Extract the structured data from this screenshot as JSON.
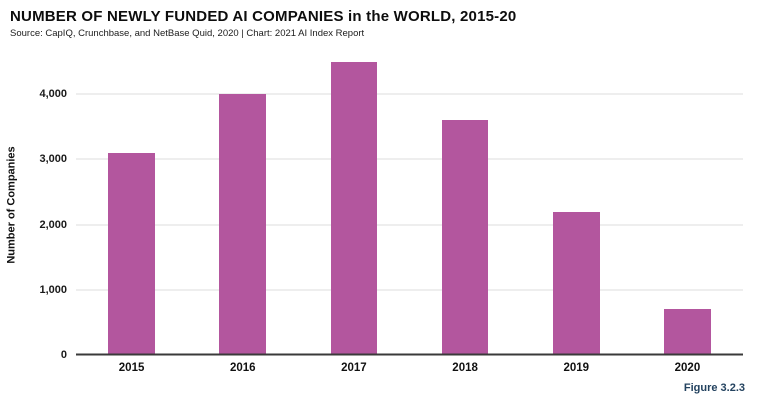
{
  "header": {
    "title": "NUMBER OF NEWLY FUNDED AI COMPANIES in the WORLD, 2015-20",
    "source": "Source: CapIQ, Crunchbase, and NetBase Quid, 2020 | Chart: 2021 AI Index Report"
  },
  "footer": {
    "figure_label": "Figure 3.2.3"
  },
  "colors": {
    "bar": "#b3569e",
    "gridline": "#dcdcdc",
    "baseline": "#3a3a3a",
    "figure_label": "#23425f"
  },
  "chart_data": {
    "type": "bar",
    "title": "NUMBER OF NEWLY FUNDED AI COMPANIES in the WORLD, 2015-20",
    "subtitle": "Source: CapIQ, Crunchbase, and NetBase Quid, 2020 | Chart: 2021 AI Index Report",
    "categories": [
      "2015",
      "2016",
      "2017",
      "2018",
      "2019",
      "2020"
    ],
    "values": [
      3100,
      4000,
      4500,
      3600,
      2200,
      700
    ],
    "xlabel": "",
    "ylabel": "Number of Companies",
    "ylim": [
      0,
      4600
    ],
    "yticks": [
      {
        "value": 0,
        "label": "0"
      },
      {
        "value": 1000,
        "label": "1,000"
      },
      {
        "value": 2000,
        "label": "2,000"
      },
      {
        "value": 3000,
        "label": "3,000"
      },
      {
        "value": 4000,
        "label": "4,000"
      }
    ],
    "grid": "horizontal",
    "legend": "none"
  }
}
